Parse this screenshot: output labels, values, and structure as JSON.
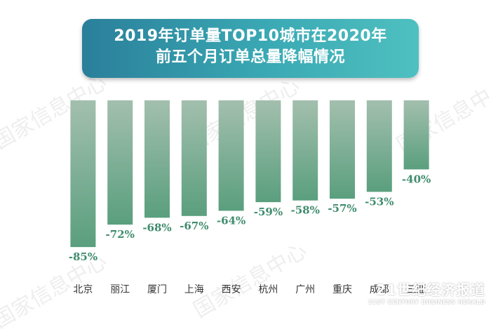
{
  "title": {
    "line1": "2019年订单量TOP10城市在2020年",
    "line2": "前五个月订单总量降幅情况"
  },
  "watermarks": [
    "国家信息中心",
    "国家信息中心",
    "国家信息中心",
    "国家信息中心",
    "国家信息中心"
  ],
  "brand": {
    "cn": "21世纪经济报道",
    "en": "21ST CENTURY BUSINESS HERALD"
  },
  "colors": {
    "bar_top": "#a3bfae",
    "bar_bottom": "#5a9f7e",
    "value_label": "#3f8c6d",
    "title_bg": "#3aa9b4"
  },
  "chart_data": {
    "type": "bar",
    "categories": [
      "北京",
      "丽江",
      "厦门",
      "上海",
      "西安",
      "杭州",
      "广州",
      "重庆",
      "成都",
      "三亚"
    ],
    "values": [
      -85,
      -72,
      -68,
      -67,
      -64,
      -59,
      -58,
      -57,
      -53,
      -40
    ],
    "data_labels": [
      "-85%",
      "-72%",
      "-68%",
      "-67%",
      "-64%",
      "-59%",
      "-58%",
      "-57%",
      "-53%",
      "-40%"
    ],
    "ylim": [
      -100,
      0
    ],
    "grid": false,
    "legend": "none",
    "xlabel": "",
    "ylabel": ""
  }
}
